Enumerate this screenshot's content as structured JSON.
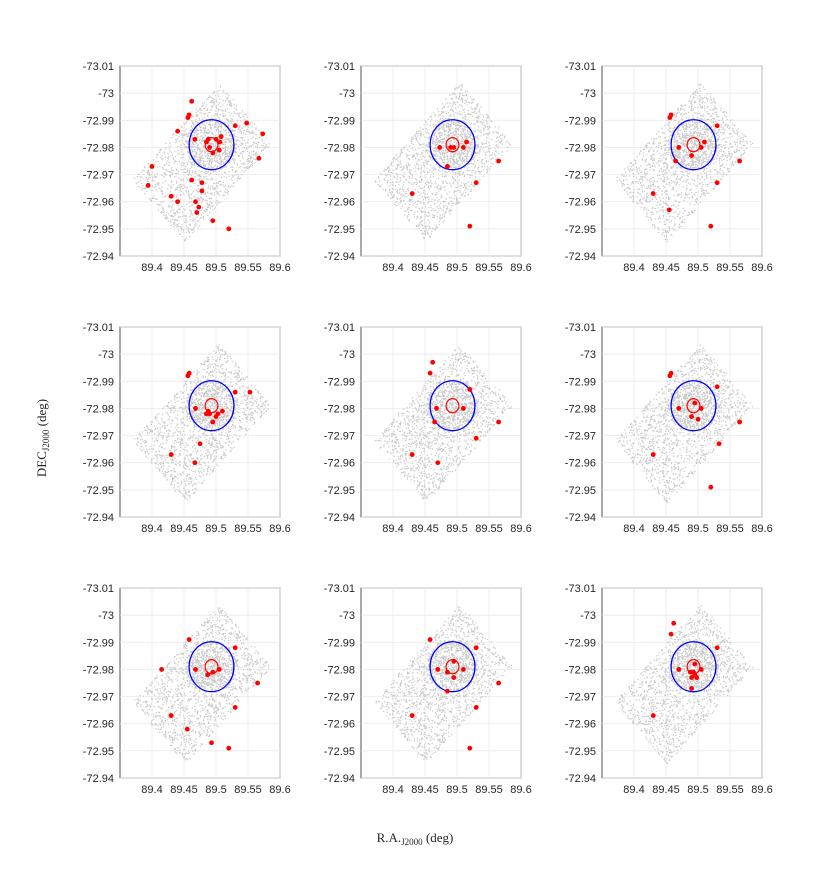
{
  "chart_data": {
    "type": "scatter",
    "layout": "3x3",
    "xlabel_main": "R.A.",
    "xlabel_sub": "J2000",
    "xlabel_unit": " (deg)",
    "ylabel_main": "DEC",
    "ylabel_sub": "J2000",
    "ylabel_unit": " (deg)",
    "xlim": [
      89.35,
      89.6
    ],
    "ylim": [
      -72.94,
      -73.01
    ],
    "xticks": [
      89.4,
      89.45,
      89.5,
      89.55,
      89.6
    ],
    "xtick_labels": [
      "89.4",
      "89.45",
      "89.5",
      "89.55",
      "89.6"
    ],
    "yticks": [
      -73.01,
      -73,
      -72.99,
      -72.98,
      -72.97,
      -72.96,
      -72.95,
      -72.94
    ],
    "ytick_labels": [
      "-73.01",
      "-73",
      "-72.99",
      "-72.98",
      "-72.97",
      "-72.96",
      "-72.95",
      "-72.94"
    ],
    "grid": true,
    "field_star_color": "#c8c8c8",
    "point_color": "#ff0000",
    "large_circle_color": "#0000ff",
    "small_circle_color": "#ff0000",
    "field_corners": [
      [
        89.37,
        -72.968
      ],
      [
        89.452,
        -72.945
      ],
      [
        89.585,
        -72.983
      ],
      [
        89.505,
        -73.004
      ]
    ],
    "large_circle": {
      "center": [
        89.493,
        -72.981
      ],
      "radius_ra": 0.035,
      "radius_dec": 0.0092
    },
    "small_circle": {
      "center": [
        89.493,
        -72.981
      ],
      "radius_ra": 0.01,
      "radius_dec": 0.0026
    },
    "panels": [
      {
        "points": [
          [
            89.462,
            -72.997
          ],
          [
            89.458,
            -72.992
          ],
          [
            89.456,
            -72.991
          ],
          [
            89.44,
            -72.986
          ],
          [
            89.467,
            -72.983
          ],
          [
            89.53,
            -72.988
          ],
          [
            89.548,
            -72.989
          ],
          [
            89.573,
            -72.985
          ],
          [
            89.485,
            -72.982
          ],
          [
            89.488,
            -72.983
          ],
          [
            89.5,
            -72.983
          ],
          [
            89.506,
            -72.982
          ],
          [
            89.508,
            -72.984
          ],
          [
            89.49,
            -72.98
          ],
          [
            89.495,
            -72.978
          ],
          [
            89.505,
            -72.979
          ],
          [
            89.4,
            -72.973
          ],
          [
            89.567,
            -72.976
          ],
          [
            89.462,
            -72.968
          ],
          [
            89.478,
            -72.967
          ],
          [
            89.478,
            -72.964
          ],
          [
            89.394,
            -72.966
          ],
          [
            89.43,
            -72.962
          ],
          [
            89.44,
            -72.96
          ],
          [
            89.468,
            -72.96
          ],
          [
            89.473,
            -72.958
          ],
          [
            89.47,
            -72.956
          ],
          [
            89.495,
            -72.953
          ],
          [
            89.52,
            -72.95
          ]
        ]
      },
      {
        "points": [
          [
            89.473,
            -72.98
          ],
          [
            89.49,
            -72.98
          ],
          [
            89.495,
            -72.98
          ],
          [
            89.51,
            -72.98
          ],
          [
            89.515,
            -72.982
          ],
          [
            89.485,
            -72.973
          ],
          [
            89.565,
            -72.975
          ],
          [
            89.53,
            -72.967
          ],
          [
            89.43,
            -72.963
          ],
          [
            89.52,
            -72.951
          ]
        ]
      },
      {
        "points": [
          [
            89.458,
            -72.992
          ],
          [
            89.456,
            -72.991
          ],
          [
            89.53,
            -72.988
          ],
          [
            89.47,
            -72.98
          ],
          [
            89.505,
            -72.98
          ],
          [
            89.51,
            -72.982
          ],
          [
            89.465,
            -72.975
          ],
          [
            89.49,
            -72.977
          ],
          [
            89.565,
            -72.975
          ],
          [
            89.53,
            -72.967
          ],
          [
            89.43,
            -72.963
          ],
          [
            89.455,
            -72.957
          ],
          [
            89.52,
            -72.951
          ]
        ]
      },
      {
        "points": [
          [
            89.458,
            -72.993
          ],
          [
            89.456,
            -72.992
          ],
          [
            89.53,
            -72.986
          ],
          [
            89.553,
            -72.986
          ],
          [
            89.468,
            -72.98
          ],
          [
            89.485,
            -72.978
          ],
          [
            89.49,
            -72.978
          ],
          [
            89.488,
            -72.979
          ],
          [
            89.5,
            -72.977
          ],
          [
            89.503,
            -72.978
          ],
          [
            89.51,
            -72.979
          ],
          [
            89.495,
            -72.975
          ],
          [
            89.475,
            -72.967
          ],
          [
            89.43,
            -72.963
          ],
          [
            89.467,
            -72.96
          ]
        ]
      },
      {
        "points": [
          [
            89.462,
            -72.997
          ],
          [
            89.458,
            -72.993
          ],
          [
            89.468,
            -72.98
          ],
          [
            89.52,
            -72.987
          ],
          [
            89.51,
            -72.98
          ],
          [
            89.465,
            -72.975
          ],
          [
            89.565,
            -72.975
          ],
          [
            89.53,
            -72.969
          ],
          [
            89.43,
            -72.963
          ],
          [
            89.47,
            -72.96
          ]
        ]
      },
      {
        "points": [
          [
            89.458,
            -72.993
          ],
          [
            89.456,
            -72.992
          ],
          [
            89.53,
            -72.988
          ],
          [
            89.47,
            -72.98
          ],
          [
            89.495,
            -72.982
          ],
          [
            89.505,
            -72.98
          ],
          [
            89.49,
            -72.977
          ],
          [
            89.5,
            -72.976
          ],
          [
            89.565,
            -72.975
          ],
          [
            89.533,
            -72.967
          ],
          [
            89.43,
            -72.963
          ],
          [
            89.52,
            -72.951
          ]
        ]
      },
      {
        "points": [
          [
            89.458,
            -72.991
          ],
          [
            89.53,
            -72.988
          ],
          [
            89.415,
            -72.98
          ],
          [
            89.468,
            -72.98
          ],
          [
            89.505,
            -72.98
          ],
          [
            89.487,
            -72.978
          ],
          [
            89.495,
            -72.979
          ],
          [
            89.565,
            -72.975
          ],
          [
            89.53,
            -72.966
          ],
          [
            89.43,
            -72.963
          ],
          [
            89.455,
            -72.958
          ],
          [
            89.493,
            -72.953
          ],
          [
            89.52,
            -72.951
          ]
        ]
      },
      {
        "points": [
          [
            89.458,
            -72.991
          ],
          [
            89.53,
            -72.988
          ],
          [
            89.47,
            -72.98
          ],
          [
            89.495,
            -72.983
          ],
          [
            89.51,
            -72.98
          ],
          [
            89.485,
            -72.979
          ],
          [
            89.495,
            -72.977
          ],
          [
            89.565,
            -72.975
          ],
          [
            89.485,
            -72.972
          ],
          [
            89.53,
            -72.966
          ],
          [
            89.43,
            -72.963
          ],
          [
            89.52,
            -72.951
          ]
        ]
      },
      {
        "points": [
          [
            89.462,
            -72.997
          ],
          [
            89.458,
            -72.993
          ],
          [
            89.53,
            -72.988
          ],
          [
            89.47,
            -72.98
          ],
          [
            89.495,
            -72.982
          ],
          [
            89.505,
            -72.98
          ],
          [
            89.488,
            -72.979
          ],
          [
            89.493,
            -72.979
          ],
          [
            89.49,
            -72.977
          ],
          [
            89.498,
            -72.977
          ],
          [
            89.495,
            -72.978
          ],
          [
            89.49,
            -72.973
          ],
          [
            89.43,
            -72.963
          ]
        ]
      }
    ]
  }
}
